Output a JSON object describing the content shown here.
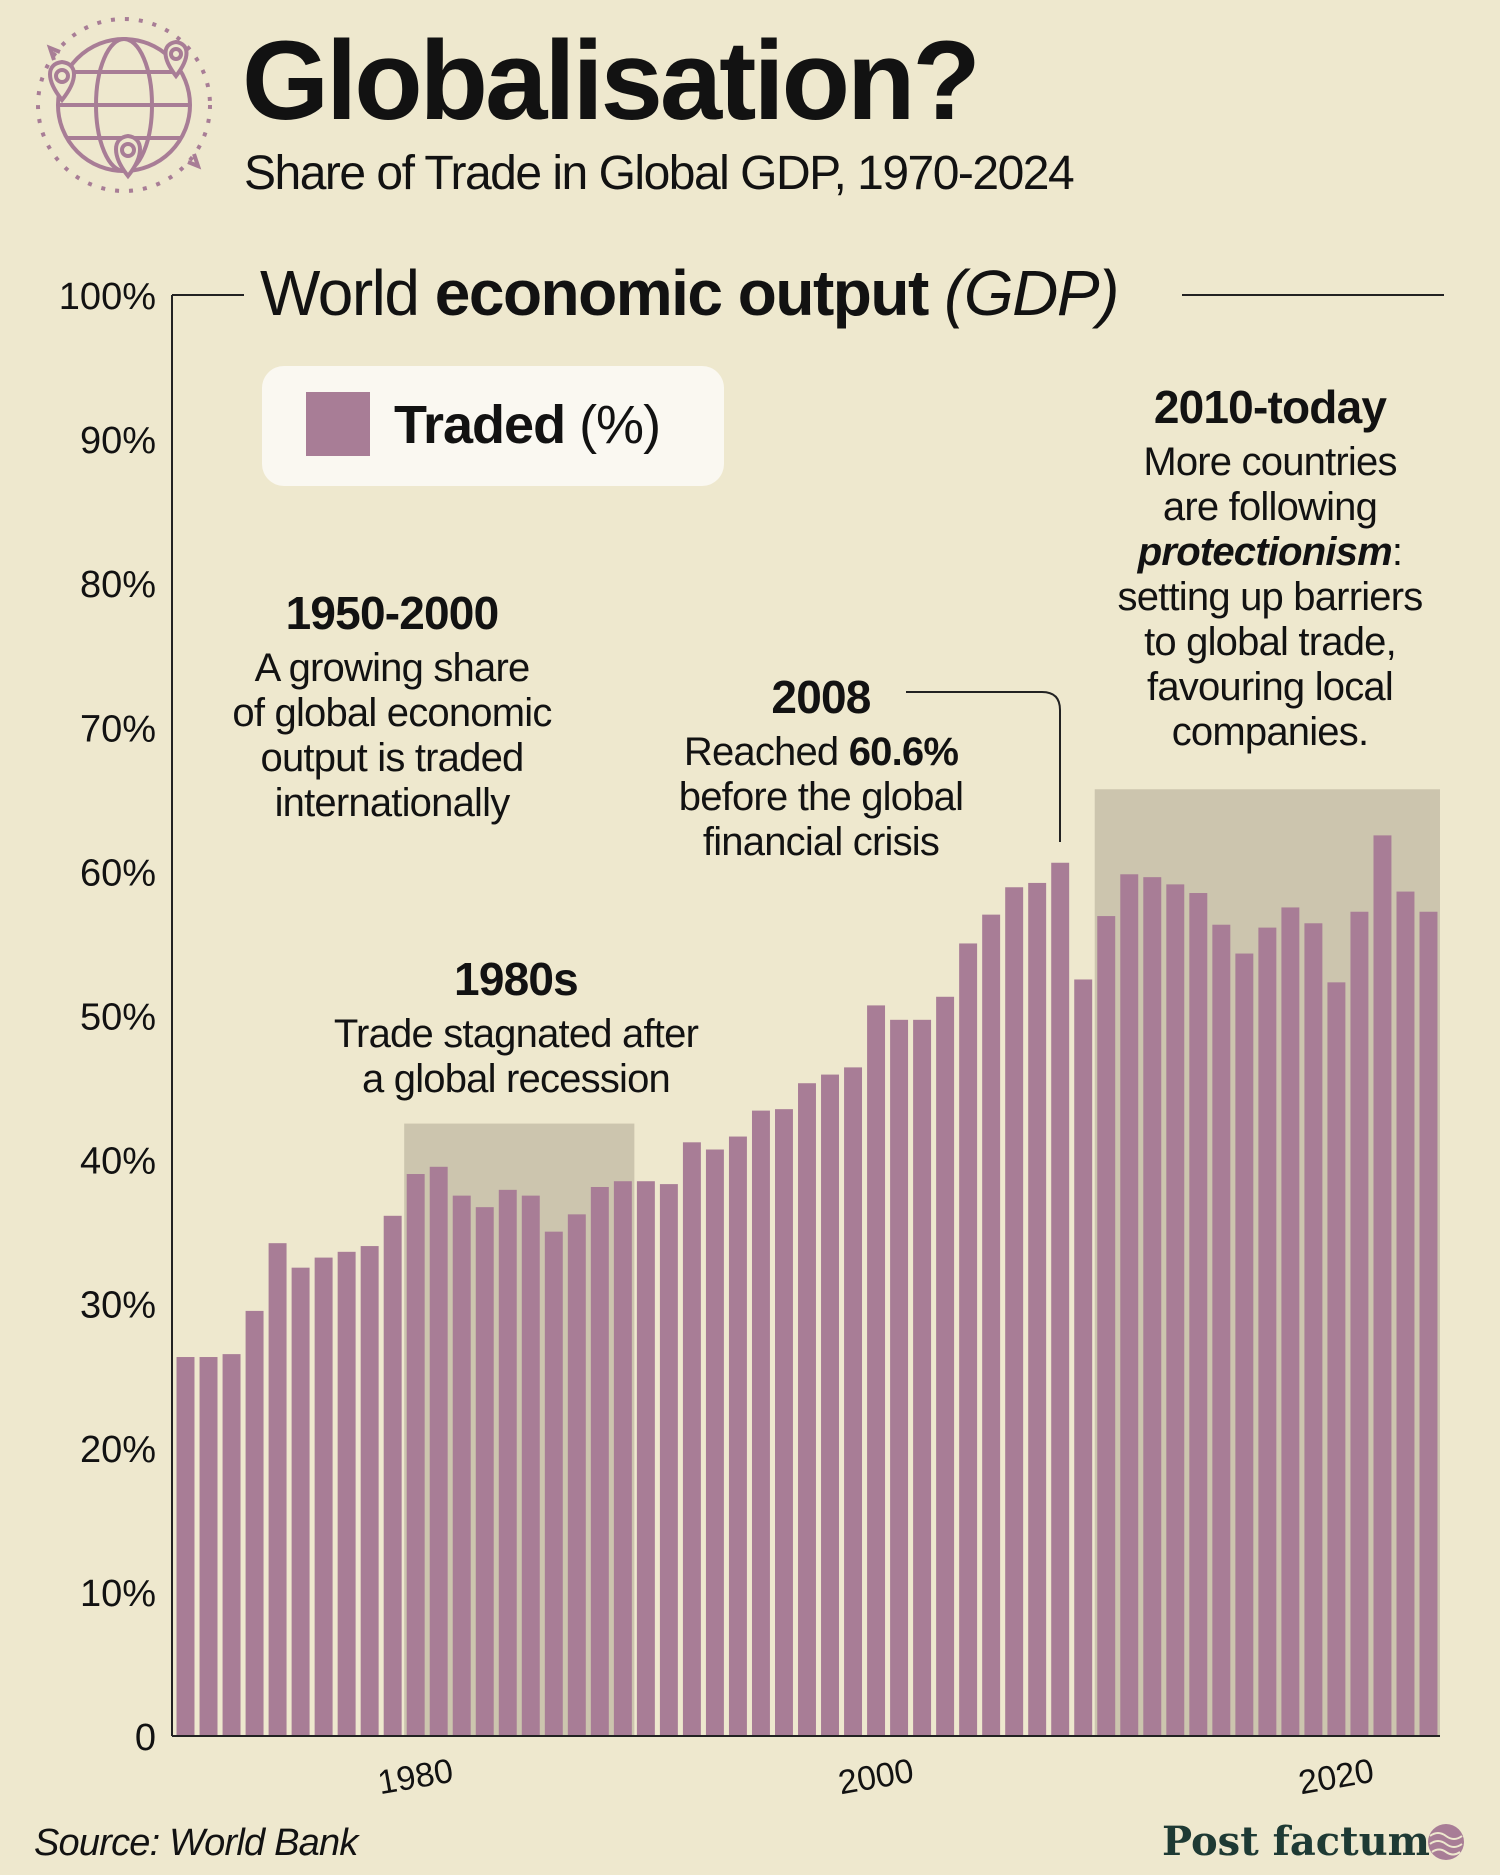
{
  "title": "Globalisation?",
  "subtitle": "Share of Trade in Global GDP, 1970-2024",
  "gdp_heading": {
    "plain": "World ",
    "bold": "economic output",
    "italic": "(GDP)"
  },
  "legend": {
    "bold": "Traded",
    "rest": " (%)"
  },
  "annotations": {
    "a1950": {
      "head": "1950-2000",
      "lines": [
        "A growing share",
        "of global economic",
        "output is traded",
        "internationally"
      ]
    },
    "a1980s": {
      "head": "1980s",
      "lines": [
        "Trade stagnated after",
        "a global recession"
      ]
    },
    "a2008": {
      "head": "2008",
      "line1_plain": "Reached ",
      "line1_bold": "60.6%",
      "lines": [
        "before the global",
        "financial crisis"
      ]
    },
    "a2010": {
      "head": "2010-today",
      "lines_a": [
        "More countries",
        "are following"
      ],
      "bold_italic": "protectionism",
      "colon": ":",
      "lines_b": [
        "setting up barriers",
        "to global trade,",
        "favouring local",
        "companies."
      ]
    }
  },
  "source": "Source: World Bank",
  "brand": "Post factum",
  "colors": {
    "bar": "#A87D96",
    "highlight": "#CCC5AE",
    "background": "#EEE8CE",
    "axis": "#222222"
  },
  "icons": {
    "logo": "globe-with-pins-icon",
    "brand": "brand-mark-icon"
  },
  "chart_data": {
    "type": "bar",
    "title": "Share of Trade in Global GDP, 1970-2024",
    "ylabel": "World economic output (GDP) traded (%)",
    "ylim": [
      0,
      100
    ],
    "yticks": [
      0,
      10,
      20,
      30,
      40,
      50,
      60,
      70,
      80,
      90,
      100
    ],
    "ytick_labels": [
      "0",
      "10%",
      "20%",
      "30%",
      "40%",
      "50%",
      "60%",
      "70%",
      "80%",
      "90%",
      "100%"
    ],
    "xtick_labels": [
      "1980",
      "2000",
      "2020"
    ],
    "xtick_years": [
      1980,
      2000,
      2020
    ],
    "series": [
      {
        "name": "Traded (%)",
        "x": [
          1970,
          1971,
          1972,
          1973,
          1974,
          1975,
          1976,
          1977,
          1978,
          1979,
          1980,
          1981,
          1982,
          1983,
          1984,
          1985,
          1986,
          1987,
          1988,
          1989,
          1990,
          1991,
          1992,
          1993,
          1994,
          1995,
          1996,
          1997,
          1998,
          1999,
          2000,
          2001,
          2002,
          2003,
          2004,
          2005,
          2006,
          2007,
          2008,
          2009,
          2010,
          2011,
          2012,
          2013,
          2014,
          2015,
          2016,
          2017,
          2018,
          2019,
          2020,
          2021,
          2022,
          2023,
          2024
        ],
        "values": [
          26.3,
          26.3,
          26.5,
          29.5,
          34.2,
          32.5,
          33.2,
          33.6,
          34.0,
          36.1,
          39.0,
          39.5,
          37.5,
          36.7,
          37.9,
          37.5,
          35.0,
          36.2,
          38.1,
          38.5,
          38.5,
          38.3,
          41.2,
          40.7,
          41.6,
          43.4,
          43.5,
          45.3,
          45.9,
          46.4,
          50.7,
          49.7,
          49.7,
          51.3,
          55.0,
          57.0,
          58.9,
          59.2,
          60.6,
          52.5,
          56.9,
          59.8,
          59.6,
          59.1,
          58.5,
          56.3,
          54.3,
          56.1,
          57.5,
          56.4,
          52.3,
          57.2,
          62.5,
          58.6,
          57.2
        ]
      }
    ],
    "highlight_ranges": [
      {
        "from": 1980,
        "to": 1989,
        "top": 42.5,
        "label": "1980s"
      },
      {
        "from": 2010,
        "to": 2024,
        "top": 65.7,
        "label": "2010-today"
      }
    ]
  }
}
